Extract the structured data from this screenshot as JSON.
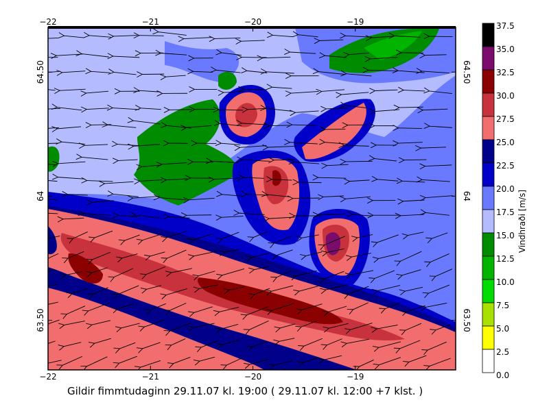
{
  "caption": "Gildir fimmtudaginn 29.11.07 kl. 19:00 ( 29.11.07 kl. 12:00 +7 klst. )",
  "x_axis": {
    "ticks": [
      {
        "value": -22,
        "label": "−22"
      },
      {
        "value": -21,
        "label": "−21"
      },
      {
        "value": -20,
        "label": "−20"
      },
      {
        "value": -19,
        "label": "−19"
      }
    ],
    "range": [
      -22,
      -18.02
    ]
  },
  "y_axis": {
    "ticks": [
      {
        "value": 64.5,
        "label": "64.50"
      },
      {
        "value": 64.0,
        "label": "64"
      },
      {
        "value": 63.5,
        "label": "63.50"
      }
    ],
    "range": [
      63.3,
      64.68
    ]
  },
  "legend": {
    "title": "Vindhraði [m/s]",
    "levels": [
      {
        "label": "37.5",
        "color": "#000000"
      },
      {
        "label": "35.0",
        "color": "#7b0c6e"
      },
      {
        "label": "32.5",
        "color": "#8b0000"
      },
      {
        "label": "30.0",
        "color": "#c8323c"
      },
      {
        "label": "27.5",
        "color": "#f26d6d"
      },
      {
        "label": "25.0",
        "color": "#00008b"
      },
      {
        "label": "22.5",
        "color": "#0000c8"
      },
      {
        "label": "20.0",
        "color": "#6a7aff"
      },
      {
        "label": "17.5",
        "color": "#b4bcff"
      },
      {
        "label": "15.0",
        "color": "#008c00"
      },
      {
        "label": "12.5",
        "color": "#00b400"
      },
      {
        "label": "10.0",
        "color": "#00dc00"
      },
      {
        "label": "7.5",
        "color": "#a8e000"
      },
      {
        "label": "5.0",
        "color": "#ffff00"
      },
      {
        "label": "2.5",
        "color": "#ffffff"
      },
      {
        "label": "0.0",
        "color": ""
      }
    ]
  }
}
